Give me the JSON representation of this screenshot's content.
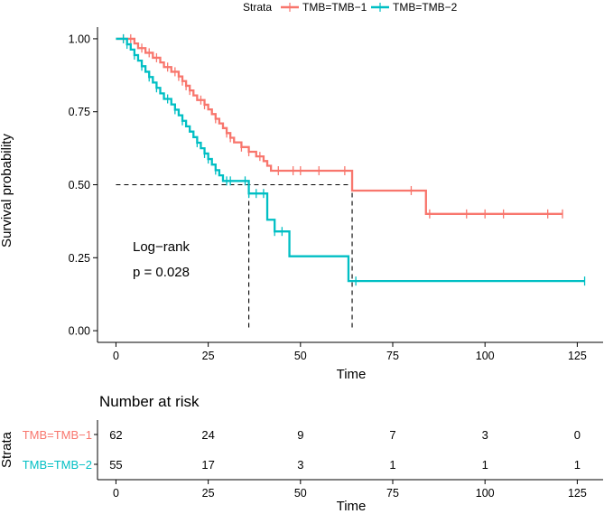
{
  "chart_data": [
    {
      "type": "line",
      "subtype": "kaplan-meier",
      "title": "",
      "xlabel": "Time",
      "ylabel": "Survival probability",
      "xlim": [
        -5,
        132
      ],
      "ylim": [
        -0.04,
        1.04
      ],
      "x_ticks": [
        "0",
        "25",
        "50",
        "75",
        "100",
        "125"
      ],
      "y_ticks": [
        "0.00",
        "0.25",
        "0.50",
        "0.75",
        "1.00"
      ],
      "x_tick_values": [
        0,
        25,
        50,
        75,
        100,
        125
      ],
      "y_tick_values": [
        0,
        0.25,
        0.5,
        0.75,
        1.0
      ],
      "legend_title": "Strata",
      "legend_position": "top",
      "annotations": [
        "Log−rank",
        "p = 0.028"
      ],
      "median_line": {
        "y": 0.5,
        "x_medians": [
          36,
          64
        ]
      },
      "series": [
        {
          "name": "TMB=TMB−1",
          "color": "#F8766D",
          "steps": [
            [
              0,
              1.0
            ],
            [
              5,
              0.984
            ],
            [
              6,
              0.968
            ],
            [
              8,
              0.952
            ],
            [
              10,
              0.935
            ],
            [
              12,
              0.919
            ],
            [
              13,
              0.903
            ],
            [
              15,
              0.887
            ],
            [
              17,
              0.871
            ],
            [
              18,
              0.855
            ],
            [
              19,
              0.839
            ],
            [
              20,
              0.823
            ],
            [
              21,
              0.806
            ],
            [
              22,
              0.79
            ],
            [
              24,
              0.774
            ],
            [
              25,
              0.758
            ],
            [
              26,
              0.742
            ],
            [
              27,
              0.726
            ],
            [
              28,
              0.71
            ],
            [
              29,
              0.694
            ],
            [
              30,
              0.677
            ],
            [
              31,
              0.661
            ],
            [
              32,
              0.645
            ],
            [
              34,
              0.629
            ],
            [
              36,
              0.613
            ],
            [
              38,
              0.597
            ],
            [
              40,
              0.581
            ],
            [
              41,
              0.565
            ],
            [
              42,
              0.548
            ],
            [
              64,
              0.48
            ],
            [
              84,
              0.4
            ],
            [
              121,
              0.4
            ]
          ],
          "censor_times": [
            2,
            4,
            7,
            9,
            11,
            14,
            16,
            17,
            18,
            19,
            20,
            23,
            24,
            27,
            30,
            31,
            34,
            36,
            39,
            44,
            48,
            50,
            55,
            62,
            80,
            85,
            95,
            100,
            105,
            117,
            121
          ]
        },
        {
          "name": "TMB=TMB−2",
          "color": "#00BFC4",
          "steps": [
            [
              0,
              1.0
            ],
            [
              3,
              0.981
            ],
            [
              4,
              0.963
            ],
            [
              5,
              0.944
            ],
            [
              6,
              0.925
            ],
            [
              7,
              0.906
            ],
            [
              8,
              0.887
            ],
            [
              9,
              0.869
            ],
            [
              10,
              0.85
            ],
            [
              11,
              0.832
            ],
            [
              12,
              0.813
            ],
            [
              13,
              0.794
            ],
            [
              15,
              0.775
            ],
            [
              16,
              0.757
            ],
            [
              17,
              0.738
            ],
            [
              18,
              0.719
            ],
            [
              19,
              0.7
            ],
            [
              20,
              0.682
            ],
            [
              21,
              0.663
            ],
            [
              22,
              0.644
            ],
            [
              23,
              0.625
            ],
            [
              24,
              0.607
            ],
            [
              25,
              0.588
            ],
            [
              26,
              0.569
            ],
            [
              27,
              0.55
            ],
            [
              28,
              0.532
            ],
            [
              29,
              0.513
            ],
            [
              36,
              0.47
            ],
            [
              41,
              0.38
            ],
            [
              43,
              0.34
            ],
            [
              47,
              0.255
            ],
            [
              63,
              0.17
            ],
            [
              127,
              0.17
            ]
          ],
          "censor_times": [
            2,
            3,
            5,
            7,
            9,
            11,
            14,
            16,
            18,
            22,
            24,
            25,
            27,
            30,
            31,
            35,
            36,
            38,
            40,
            43,
            45,
            65,
            127
          ]
        }
      ]
    },
    {
      "type": "table",
      "title": "Number at risk",
      "xlabel": "Time",
      "x_ticks": [
        "0",
        "25",
        "50",
        "75",
        "100",
        "125"
      ],
      "ylabel": "Strata",
      "rows": [
        {
          "name": "TMB=TMB−1",
          "color": "#F8766D",
          "values": [
            "62",
            "24",
            "9",
            "7",
            "3",
            "0"
          ]
        },
        {
          "name": "TMB=TMB−2",
          "color": "#00BFC4",
          "values": [
            "55",
            "17",
            "3",
            "1",
            "1",
            "1"
          ]
        }
      ]
    }
  ]
}
